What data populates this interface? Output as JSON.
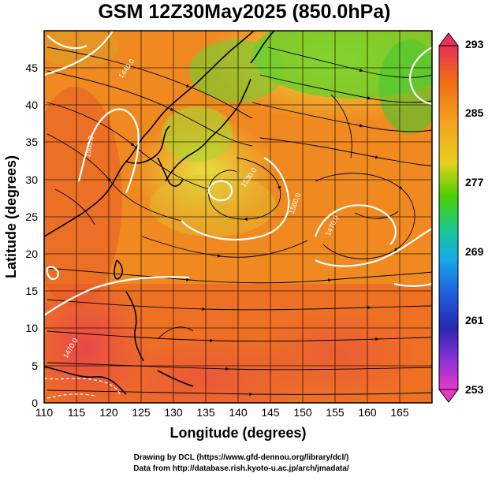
{
  "title": "GSM 12Z30May2025 (850.0hPa)",
  "xlabel": "Longitude (degrees)",
  "ylabel": "Latitude  (degrees)",
  "credits": [
    "Drawing by DCL (https://www.gfd-dennou.org/library/dcl/)",
    "Data from http://database.rish.kyoto-u.ac.jp/arch/jmadata/"
  ],
  "map": {
    "lon_range": [
      110,
      170
    ],
    "lat_range": [
      0,
      50
    ],
    "lon_ticks": [
      "110",
      "115",
      "120",
      "125",
      "130",
      "135",
      "140",
      "145",
      "150",
      "155",
      "160",
      "165"
    ],
    "lat_ticks": [
      "0",
      "5",
      "10",
      "15",
      "20",
      "25",
      "30",
      "35",
      "40",
      "45"
    ],
    "grid": true,
    "field": "temperature shading with streamlines and white contours",
    "contour_labels": [
      "1440.0",
      "1500.0",
      "1530.0",
      "1560.0",
      "1470.0",
      "1470.0"
    ],
    "colorbar": {
      "ticks": [
        "293",
        "285",
        "277",
        "269",
        "261",
        "253"
      ],
      "range": [
        253,
        293
      ],
      "colors": [
        "#e8305a",
        "#f06a14",
        "#f6a020",
        "#e8d020",
        "#48d000",
        "#18c898",
        "#18a8e8",
        "#2060e0",
        "#2828b0",
        "#8830d8",
        "#e838c8"
      ]
    }
  }
}
